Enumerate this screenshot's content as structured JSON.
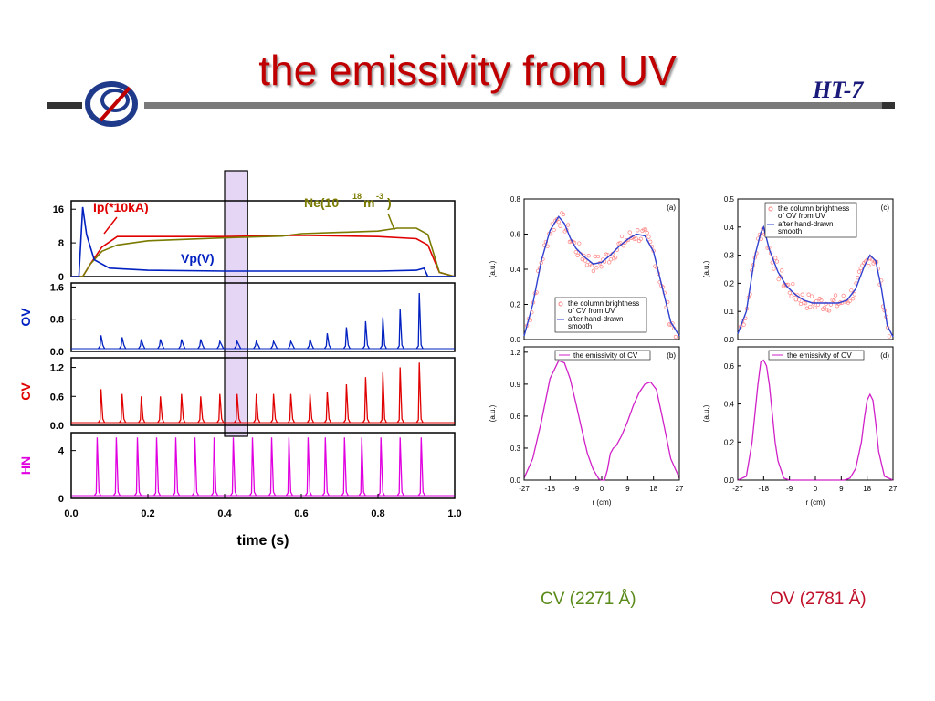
{
  "slide": {
    "title": "the emissivity from UV",
    "badge": "HT-7",
    "captions": [
      "CV (2271 Å)",
      "OV (2781 Å)"
    ],
    "colors": {
      "title": "#c00000",
      "accent_bar": "#7a7a7a",
      "logo": "#1f3a8a"
    }
  },
  "chart_data": [
    {
      "type": "line",
      "panel": "time traces",
      "xlabel": "time (s)",
      "xlim": [
        0.0,
        1.0
      ],
      "xticks": [
        "0.0",
        "0.2",
        "0.4",
        "0.6",
        "0.8",
        "1.0"
      ],
      "highlight_window": [
        0.4,
        0.46
      ],
      "subplots": [
        {
          "ylim": [
            0,
            18
          ],
          "yticks": [
            "0",
            "8",
            "16"
          ],
          "series": [
            {
              "name": "Ip(*10kA)",
              "color": "#e00000",
              "x": [
                0.0,
                0.03,
                0.05,
                0.08,
                0.12,
                0.2,
                0.4,
                0.6,
                0.8,
                0.9,
                0.93,
                0.96,
                1.0
              ],
              "values": [
                0,
                0,
                3,
                7,
                9.5,
                9.5,
                9.5,
                9.8,
                9.5,
                9.0,
                7.5,
                1,
                0
              ]
            },
            {
              "name": "Ne(10^18 m^-3)",
              "color": "#7a7a00",
              "x": [
                0.0,
                0.03,
                0.05,
                0.08,
                0.12,
                0.2,
                0.4,
                0.55,
                0.6,
                0.7,
                0.8,
                0.85,
                0.9,
                0.93,
                0.96,
                1.0
              ],
              "values": [
                0,
                0,
                3,
                6,
                7.5,
                8.5,
                9.2,
                9.6,
                10.2,
                10.5,
                10.8,
                11.5,
                11.5,
                10,
                1,
                0
              ]
            },
            {
              "name": "Vp(V)",
              "color": "#0020c0",
              "x": [
                0.0,
                0.02,
                0.03,
                0.04,
                0.06,
                0.1,
                0.2,
                0.4,
                0.6,
                0.8,
                0.9,
                0.92,
                0.93,
                1.0
              ],
              "values": [
                0,
                0,
                16.5,
                10,
                4,
                2,
                1.5,
                1.3,
                1.3,
                1.3,
                1.5,
                2,
                0,
                0
              ]
            }
          ],
          "labels": [
            "Ip(*10kA)",
            "Ne(10",
            "18",
            "m",
            "-3",
            ")",
            "Vp(V)"
          ]
        },
        {
          "ylabel": "OV",
          "ylim": [
            0,
            1.7
          ],
          "yticks": [
            "0.0",
            "0.8",
            "1.6"
          ],
          "color": "#0020c0",
          "spike_times": [
            0.08,
            0.135,
            0.185,
            0.235,
            0.29,
            0.34,
            0.39,
            0.435,
            0.485,
            0.53,
            0.575,
            0.625,
            0.67,
            0.72,
            0.77,
            0.815,
            0.86,
            0.91
          ],
          "spike_heights": [
            0.4,
            0.35,
            0.3,
            0.3,
            0.3,
            0.3,
            0.25,
            0.25,
            0.25,
            0.25,
            0.25,
            0.3,
            0.45,
            0.6,
            0.75,
            0.85,
            1.05,
            1.45
          ]
        },
        {
          "ylabel": "CV",
          "ylim": [
            0,
            1.4
          ],
          "yticks": [
            "0.0",
            "0.6",
            "1.2"
          ],
          "color": "#e00000",
          "spike_times": [
            0.08,
            0.135,
            0.185,
            0.235,
            0.29,
            0.34,
            0.39,
            0.435,
            0.485,
            0.53,
            0.575,
            0.625,
            0.67,
            0.72,
            0.77,
            0.815,
            0.86,
            0.91
          ],
          "spike_heights": [
            0.75,
            0.65,
            0.6,
            0.6,
            0.65,
            0.6,
            0.65,
            0.65,
            0.65,
            0.65,
            0.65,
            0.65,
            0.7,
            0.85,
            1.0,
            1.1,
            1.2,
            1.3
          ]
        },
        {
          "ylabel": "HN",
          "ylim": [
            0,
            5.5
          ],
          "yticks": [
            "0",
            "4"
          ],
          "color": "#e000e0",
          "spike_times": [
            0.07,
            0.12,
            0.175,
            0.225,
            0.275,
            0.325,
            0.375,
            0.425,
            0.475,
            0.525,
            0.57,
            0.62,
            0.665,
            0.715,
            0.76,
            0.81,
            0.86,
            0.915
          ],
          "spike_heights": [
            5.1,
            5.1,
            5.1,
            5.1,
            5.1,
            5.1,
            5.1,
            5.1,
            5.1,
            5.1,
            5.1,
            5.1,
            5.1,
            5.1,
            5.1,
            5.1,
            5.1,
            5.1
          ]
        }
      ]
    },
    {
      "type": "scatter",
      "panel": "(a)",
      "ylabel": "(a.u.)",
      "xlim": [
        -27,
        27
      ],
      "ylim": [
        0,
        0.8
      ],
      "yticks": [
        "0.0",
        "0.2",
        "0.4",
        "0.6",
        "0.8"
      ],
      "legend": [
        "the column brightness",
        "of CV from UV",
        "after hand-drawn",
        "smooth"
      ],
      "smooth": {
        "x": [
          -27,
          -24,
          -21,
          -18,
          -15,
          -13,
          -11,
          -9,
          -6,
          -3,
          0,
          3,
          6,
          9,
          12,
          15,
          18,
          21,
          24,
          27
        ],
        "values": [
          0.02,
          0.2,
          0.45,
          0.62,
          0.7,
          0.66,
          0.58,
          0.52,
          0.47,
          0.43,
          0.44,
          0.48,
          0.53,
          0.57,
          0.6,
          0.59,
          0.5,
          0.3,
          0.1,
          0.02
        ]
      }
    },
    {
      "type": "line",
      "panel": "(b)",
      "ylabel": "(a.u.)",
      "xlabel": "r (cm)",
      "xlim": [
        -27,
        27
      ],
      "xticks": [
        "-27",
        "-18",
        "-9",
        "0",
        "9",
        "18",
        "27"
      ],
      "ylim": [
        0,
        1.25
      ],
      "yticks": [
        "0.0",
        "0.3",
        "0.6",
        "0.9",
        "1.2"
      ],
      "legend": [
        "the emissivity of CV"
      ],
      "series": [
        {
          "x": [
            -27,
            -24,
            -21,
            -18,
            -15,
            -13,
            -11,
            -9,
            -7,
            -5,
            -3,
            -1,
            0,
            1,
            2,
            3,
            4,
            5,
            7,
            9,
            11,
            13,
            15,
            17,
            19,
            21,
            24,
            27
          ],
          "values": [
            0.02,
            0.2,
            0.55,
            0.95,
            1.12,
            1.1,
            0.95,
            0.72,
            0.48,
            0.25,
            0.1,
            0.01,
            0.0,
            0.0,
            0.1,
            0.25,
            0.3,
            0.32,
            0.42,
            0.55,
            0.7,
            0.82,
            0.9,
            0.92,
            0.85,
            0.6,
            0.2,
            0.02
          ]
        }
      ]
    },
    {
      "type": "scatter",
      "panel": "(c)",
      "ylabel": "(a.u.)",
      "xlim": [
        -27,
        27
      ],
      "ylim": [
        0,
        0.5
      ],
      "yticks": [
        "0.0",
        "0.1",
        "0.2",
        "0.3",
        "0.4",
        "0.5"
      ],
      "legend": [
        "the column brightness",
        "of OV from UV",
        "after hand-drawn",
        "smooth"
      ],
      "smooth": {
        "x": [
          -27,
          -24,
          -21,
          -19,
          -18,
          -16,
          -13,
          -10,
          -7,
          -4,
          -1,
          2,
          5,
          8,
          11,
          14,
          17,
          19,
          21,
          23,
          25,
          27
        ],
        "values": [
          0.02,
          0.1,
          0.3,
          0.38,
          0.4,
          0.32,
          0.24,
          0.19,
          0.16,
          0.14,
          0.13,
          0.13,
          0.13,
          0.13,
          0.14,
          0.18,
          0.26,
          0.3,
          0.28,
          0.18,
          0.05,
          0.01
        ]
      }
    },
    {
      "type": "line",
      "panel": "(d)",
      "ylabel": "(a.u.)",
      "xlabel": "r (cm)",
      "xlim": [
        -27,
        27
      ],
      "xticks": [
        "-27",
        "-18",
        "-9",
        "0",
        "9",
        "18",
        "27"
      ],
      "ylim": [
        0,
        0.7
      ],
      "yticks": [
        "0.0",
        "0.2",
        "0.4",
        "0.6"
      ],
      "legend": [
        "the emissivity of OV"
      ],
      "series": [
        {
          "x": [
            -27,
            -24,
            -22,
            -20,
            -19,
            -18,
            -17,
            -16,
            -15,
            -14,
            -13,
            -11,
            -9,
            -6,
            0,
            6,
            10,
            12,
            14,
            16,
            17,
            18,
            19,
            20,
            21,
            22,
            24,
            27
          ],
          "values": [
            0,
            0.02,
            0.2,
            0.5,
            0.62,
            0.63,
            0.6,
            0.5,
            0.35,
            0.2,
            0.1,
            0.01,
            0,
            0,
            0,
            0,
            0,
            0.01,
            0.06,
            0.2,
            0.32,
            0.42,
            0.45,
            0.42,
            0.3,
            0.15,
            0.02,
            0
          ]
        }
      ]
    }
  ]
}
